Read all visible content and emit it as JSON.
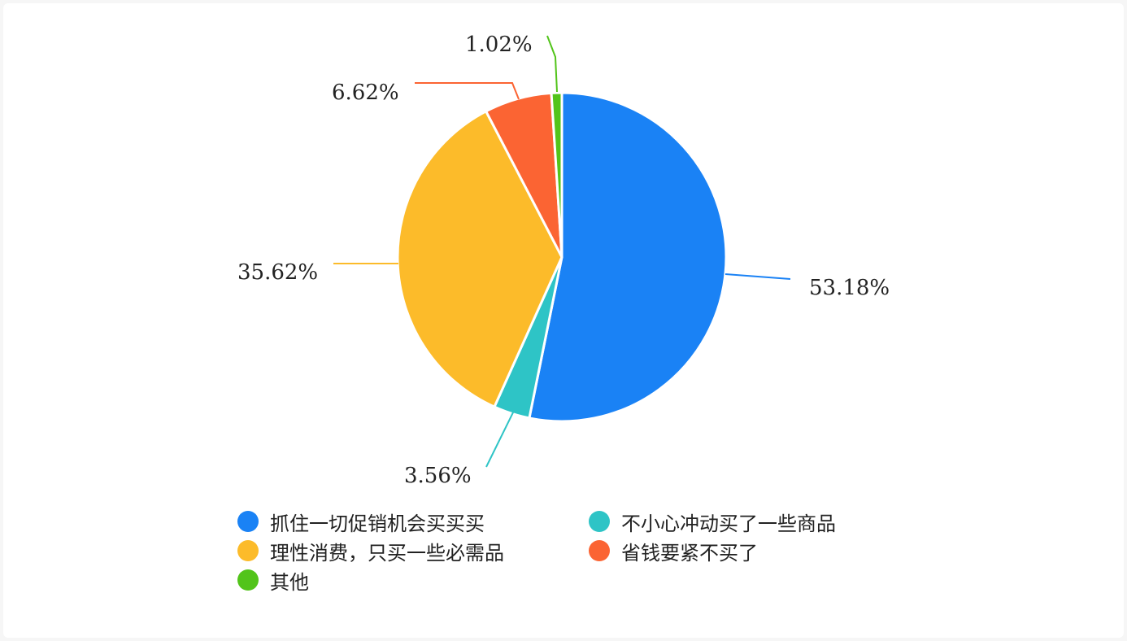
{
  "chart_data": {
    "type": "pie",
    "title": "",
    "series": [
      {
        "name": "抓住一切促销机会买买买",
        "value": 53.18,
        "label": "53.18%",
        "color": "#1a82f5"
      },
      {
        "name": "不小心冲动买了一些商品",
        "value": 3.56,
        "label": "3.56%",
        "color": "#2ec4c6"
      },
      {
        "name": "理性消费，只买一些必需品",
        "value": 35.62,
        "label": "35.62%",
        "color": "#fcbb2a"
      },
      {
        "name": "省钱要紧不买了",
        "value": 6.62,
        "label": "6.62%",
        "color": "#fb6433"
      },
      {
        "name": "其他",
        "value": 1.02,
        "label": "1.02%",
        "color": "#52c41a"
      }
    ],
    "legend_position": "bottom"
  }
}
